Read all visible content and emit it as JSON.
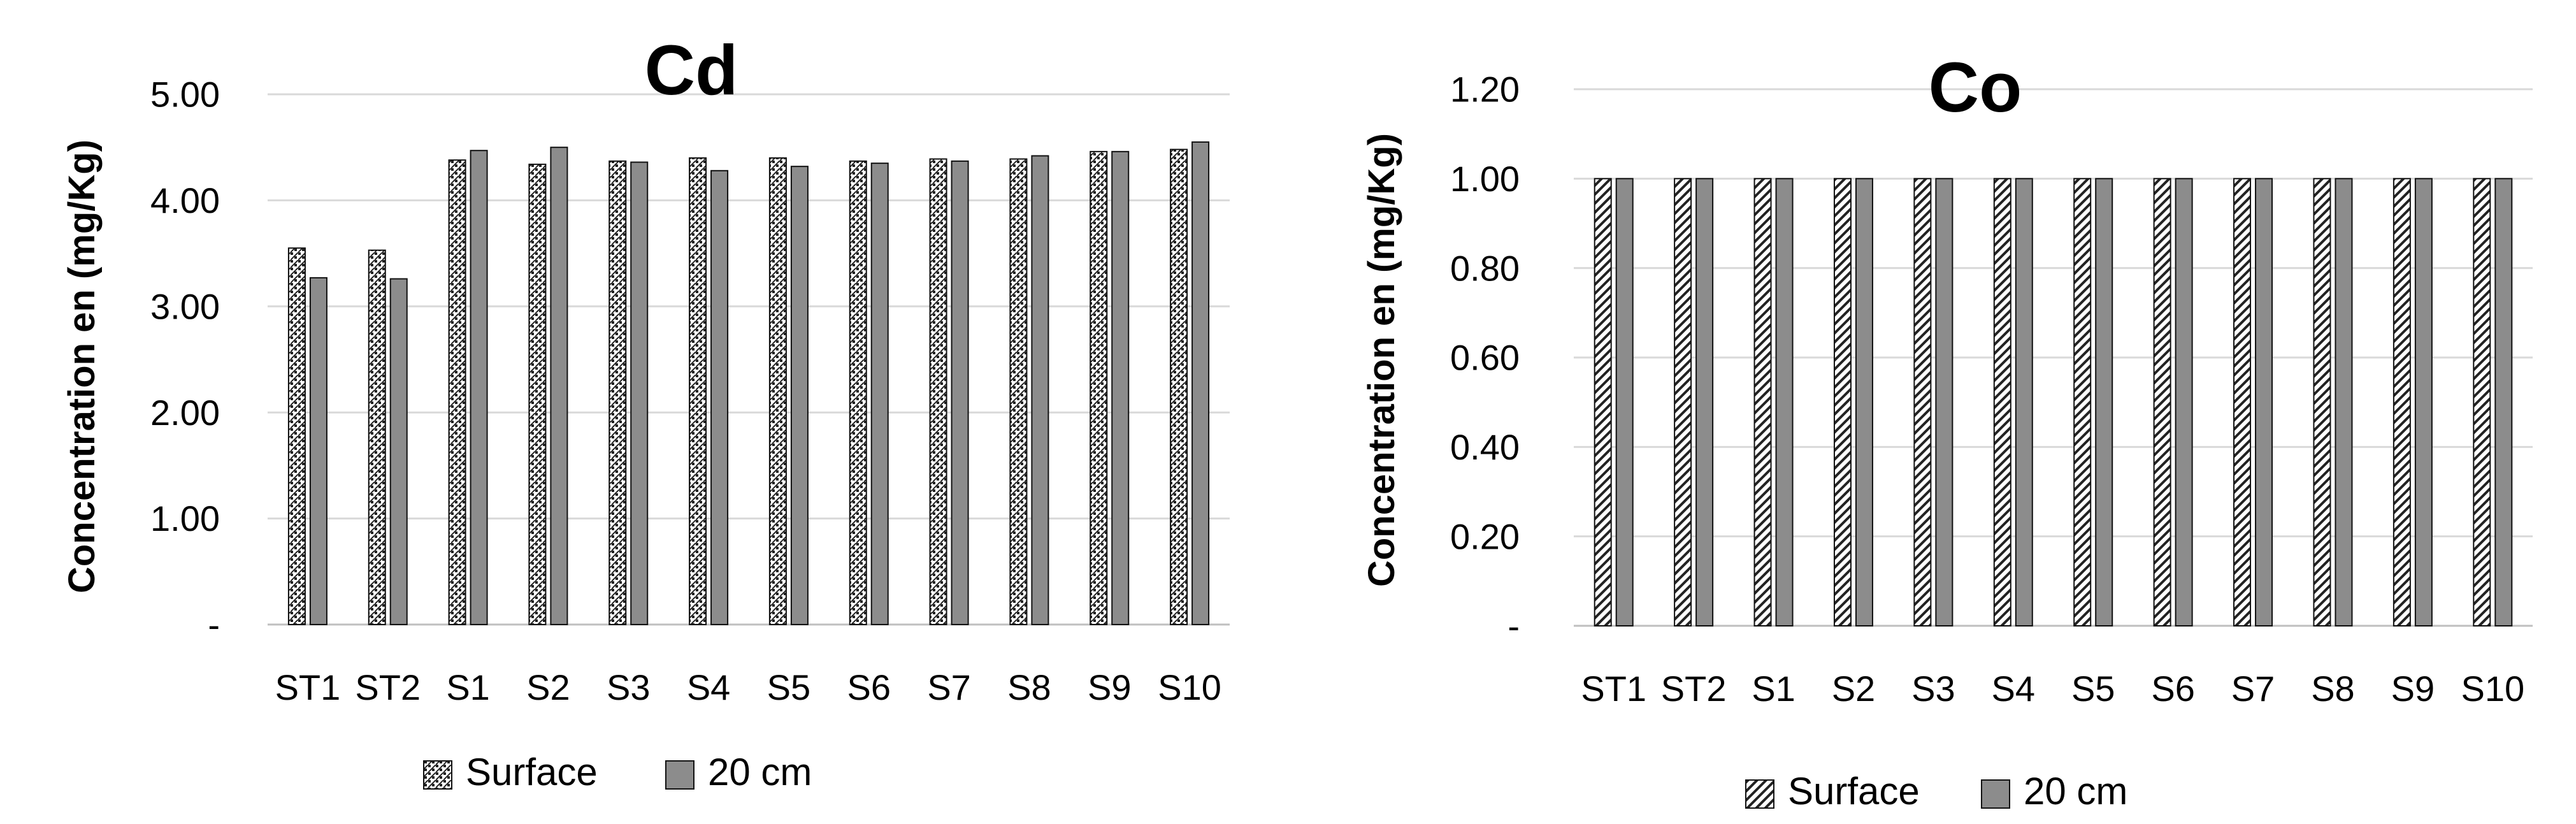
{
  "colors": {
    "surface_hatch": "#222222",
    "surface_fill": "#ffffff",
    "cm20_fill": "#8c8c8c",
    "bar_stroke": "#111111",
    "grid": "#d9d9d9",
    "axis": "#bfbfbf"
  },
  "chart_data": [
    {
      "type": "bar",
      "title": "Cd",
      "ylabel": "Concentration en (mg/Kg)",
      "xlabel": "",
      "categories": [
        "ST1",
        "ST2",
        "S1",
        "S2",
        "S3",
        "S4",
        "S5",
        "S6",
        "S7",
        "S8",
        "S9",
        "S10"
      ],
      "yticks": [
        "-",
        "1.00",
        "2.00",
        "3.00",
        "4.00",
        "5.00"
      ],
      "ylim": [
        0,
        5
      ],
      "grid": true,
      "legend_position": "bottom",
      "series": [
        {
          "name": "Surface",
          "pattern": "checker",
          "values": [
            3.55,
            3.53,
            4.38,
            4.34,
            4.37,
            4.4,
            4.4,
            4.37,
            4.39,
            4.39,
            4.46,
            4.48
          ]
        },
        {
          "name": "20 cm",
          "pattern": "solid",
          "values": [
            3.27,
            3.26,
            4.47,
            4.5,
            4.36,
            4.28,
            4.32,
            4.35,
            4.37,
            4.42,
            4.46,
            4.55
          ]
        }
      ]
    },
    {
      "type": "bar",
      "title": "Co",
      "ylabel": "Concentration en (mg/Kg)",
      "xlabel": "",
      "categories": [
        "ST1",
        "ST2",
        "S1",
        "S2",
        "S3",
        "S4",
        "S5",
        "S6",
        "S7",
        "S8",
        "S9",
        "S10"
      ],
      "yticks": [
        "-",
        "0.20",
        "0.40",
        "0.60",
        "0.80",
        "1.00",
        "1.20"
      ],
      "ylim": [
        0,
        1.2
      ],
      "grid": true,
      "legend_position": "bottom",
      "series": [
        {
          "name": "Surface",
          "pattern": "diagonal",
          "values": [
            1.0,
            1.0,
            1.0,
            1.0,
            1.0,
            1.0,
            1.0,
            1.0,
            1.0,
            1.0,
            1.0,
            1.0
          ]
        },
        {
          "name": "20 cm",
          "pattern": "solid",
          "values": [
            1.0,
            1.0,
            1.0,
            1.0,
            1.0,
            1.0,
            1.0,
            1.0,
            1.0,
            1.0,
            1.0,
            1.0
          ]
        }
      ]
    }
  ]
}
